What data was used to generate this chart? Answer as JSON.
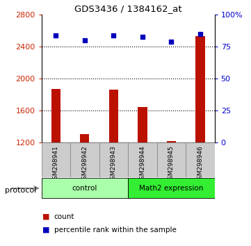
{
  "title": "GDS3436 / 1384162_at",
  "samples": [
    "GSM298941",
    "GSM298942",
    "GSM298943",
    "GSM298944",
    "GSM298945",
    "GSM298946"
  ],
  "counts": [
    1870,
    1310,
    1860,
    1650,
    1220,
    2530
  ],
  "percentile_ranks": [
    84,
    80,
    84,
    83,
    79,
    85
  ],
  "ylim_left": [
    1200,
    2800
  ],
  "ylim_right": [
    0,
    100
  ],
  "yticks_left": [
    1200,
    1600,
    2000,
    2400,
    2800
  ],
  "yticks_right": [
    0,
    25,
    50,
    75,
    100
  ],
  "ytick_labels_right": [
    "0",
    "25",
    "50",
    "75",
    "100%"
  ],
  "bar_color": "#bb1100",
  "scatter_color": "#0000bb",
  "dot_grid_color": "black",
  "groups": [
    {
      "label": "control",
      "indices": [
        0,
        1,
        2
      ],
      "color": "#aaffaa"
    },
    {
      "label": "Math2 expression",
      "indices": [
        3,
        4,
        5
      ],
      "color": "#33ee33"
    }
  ],
  "tick_label_color_left": "#cc2200",
  "tick_label_color_right": "#0000cc",
  "col_bg_color": "#cccccc",
  "col_border_color": "#888888",
  "bar_width": 0.32
}
